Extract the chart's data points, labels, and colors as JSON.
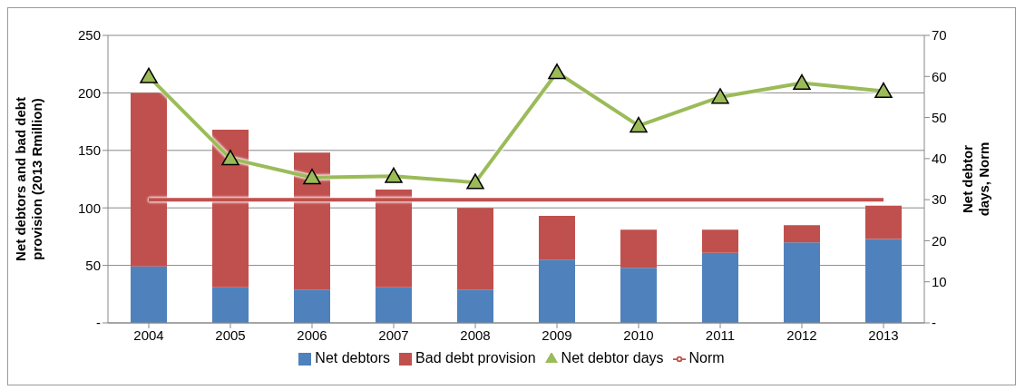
{
  "chart_data": {
    "type": "bar",
    "stacked": true,
    "categories": [
      "2004",
      "2005",
      "2006",
      "2007",
      "2008",
      "2009",
      "2010",
      "2011",
      "2012",
      "2013"
    ],
    "ylabel": "Net debtors and bad debt provision (2013 Rmillion)",
    "y2label": "Net debtor days, Norm",
    "series": [
      {
        "name": "Net debtors",
        "color": "#4f81bd",
        "values": [
          49,
          31,
          29,
          31,
          29,
          55,
          48,
          61,
          70,
          73
        ]
      },
      {
        "name": "Bad debt provision",
        "color": "#c0504d",
        "values": [
          151,
          137,
          119,
          85,
          71,
          38,
          33,
          20,
          15,
          29
        ]
      },
      {
        "name": "Net debtor days",
        "type": "line",
        "axis": "y2",
        "color": "#9bbb59",
        "marker": "triangle",
        "values": [
          60,
          40,
          35.4,
          35.7,
          34.2,
          61,
          48,
          55,
          58.4,
          56.4
        ]
      },
      {
        "name": "Norm",
        "type": "line",
        "axis": "y2",
        "color": "#c0504d",
        "marker": "none",
        "values": [
          30,
          30,
          30,
          30,
          30,
          30,
          30,
          30,
          30,
          30
        ]
      }
    ],
    "ylim": [
      0,
      250
    ],
    "yticks": [
      {
        "value": 0,
        "label": "-"
      },
      50,
      100,
      150,
      200,
      250
    ],
    "y2lim": [
      0,
      70
    ],
    "y2ticks": [
      {
        "value": 0,
        "label": "-"
      },
      10,
      20,
      30,
      40,
      50,
      60,
      70
    ],
    "grid": "y",
    "legend": "bottom",
    "line_style": "solid"
  }
}
